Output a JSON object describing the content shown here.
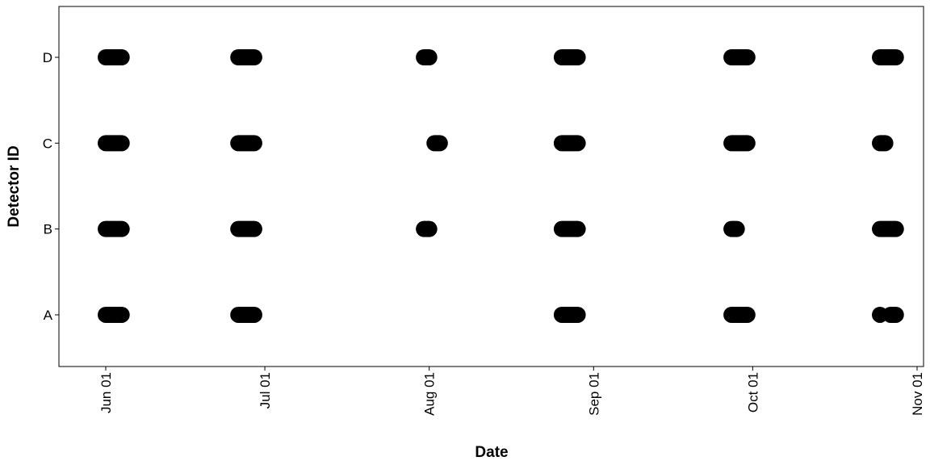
{
  "chart_data": {
    "type": "scatter",
    "title": "",
    "xlabel": "Date",
    "ylabel": "Detector ID",
    "categories": [
      "A",
      "B",
      "C",
      "D"
    ],
    "xlim": [
      "2024-05-31",
      "2024-11-01"
    ],
    "x_tick_labels": [
      {
        "date": "2024-06-01",
        "label": "Jun 01"
      },
      {
        "date": "2024-07-01",
        "label": "Jul 01"
      },
      {
        "date": "2024-08-01",
        "label": "Aug 01"
      },
      {
        "date": "2024-09-01",
        "label": "Sep 01"
      },
      {
        "date": "2024-10-01",
        "label": "Oct 01"
      },
      {
        "date": "2024-11-01",
        "label": "Nov 01"
      }
    ],
    "grid": false,
    "legend": "none",
    "point_color": "#000000",
    "detections": [
      {
        "detector": "A",
        "start": "2024-06-01",
        "end": "2024-06-04"
      },
      {
        "detector": "A",
        "start": "2024-06-26",
        "end": "2024-06-29"
      },
      {
        "detector": "A",
        "start": "2024-08-26",
        "end": "2024-08-29"
      },
      {
        "detector": "A",
        "start": "2024-09-27",
        "end": "2024-09-30"
      },
      {
        "detector": "A",
        "start": "2024-10-25",
        "end": "2024-10-25"
      },
      {
        "detector": "A",
        "start": "2024-10-27",
        "end": "2024-10-28"
      },
      {
        "detector": "B",
        "start": "2024-06-01",
        "end": "2024-06-04"
      },
      {
        "detector": "B",
        "start": "2024-06-26",
        "end": "2024-06-29"
      },
      {
        "detector": "B",
        "start": "2024-07-31",
        "end": "2024-08-01"
      },
      {
        "detector": "B",
        "start": "2024-08-26",
        "end": "2024-08-29"
      },
      {
        "detector": "B",
        "start": "2024-09-27",
        "end": "2024-09-28"
      },
      {
        "detector": "B",
        "start": "2024-10-25",
        "end": "2024-10-28"
      },
      {
        "detector": "C",
        "start": "2024-06-01",
        "end": "2024-06-04"
      },
      {
        "detector": "C",
        "start": "2024-06-26",
        "end": "2024-06-29"
      },
      {
        "detector": "C",
        "start": "2024-08-02",
        "end": "2024-08-03"
      },
      {
        "detector": "C",
        "start": "2024-08-26",
        "end": "2024-08-29"
      },
      {
        "detector": "C",
        "start": "2024-09-27",
        "end": "2024-09-30"
      },
      {
        "detector": "C",
        "start": "2024-10-25",
        "end": "2024-10-26"
      },
      {
        "detector": "D",
        "start": "2024-06-01",
        "end": "2024-06-04"
      },
      {
        "detector": "D",
        "start": "2024-06-26",
        "end": "2024-06-29"
      },
      {
        "detector": "D",
        "start": "2024-07-31",
        "end": "2024-08-01"
      },
      {
        "detector": "D",
        "start": "2024-08-26",
        "end": "2024-08-29"
      },
      {
        "detector": "D",
        "start": "2024-09-27",
        "end": "2024-09-30"
      },
      {
        "detector": "D",
        "start": "2024-10-25",
        "end": "2024-10-28"
      }
    ]
  }
}
